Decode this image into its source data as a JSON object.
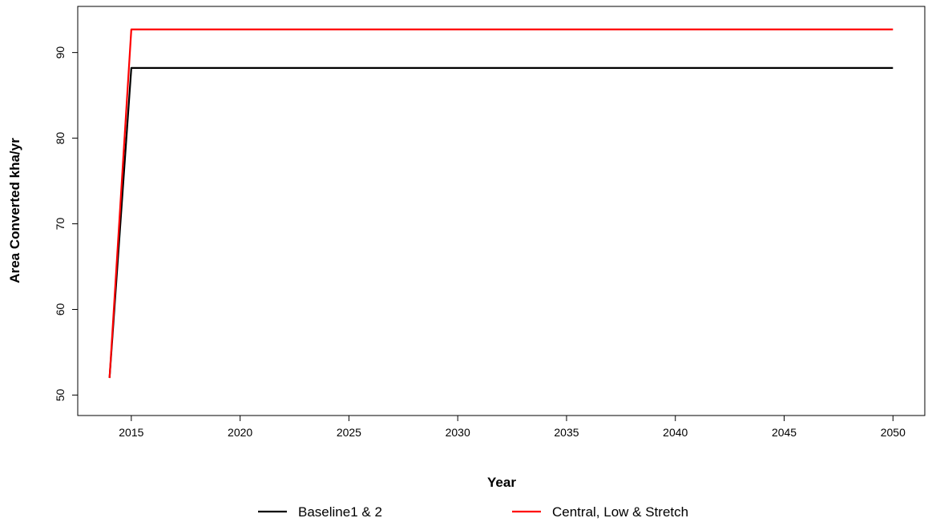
{
  "chart_data": {
    "type": "line",
    "title": "",
    "xlabel": "Year",
    "ylabel": "Area Converted kha/yr",
    "xlim": [
      2014,
      2050
    ],
    "ylim": [
      48.5,
      94.5
    ],
    "x_ticks": [
      2015,
      2020,
      2025,
      2030,
      2035,
      2040,
      2045,
      2050
    ],
    "y_ticks": [
      50,
      60,
      70,
      80,
      90
    ],
    "grid": false,
    "legend_position": "bottom",
    "series": [
      {
        "name": "Baseline1 & 2",
        "color": "#000000",
        "x": [
          2014,
          2015,
          2050
        ],
        "y": [
          52.0,
          88.2,
          88.2
        ]
      },
      {
        "name": "Central, Low & Stretch",
        "color": "#ff0000",
        "x": [
          2014,
          2015,
          2050
        ],
        "y": [
          52.0,
          92.7,
          92.7
        ]
      }
    ]
  }
}
